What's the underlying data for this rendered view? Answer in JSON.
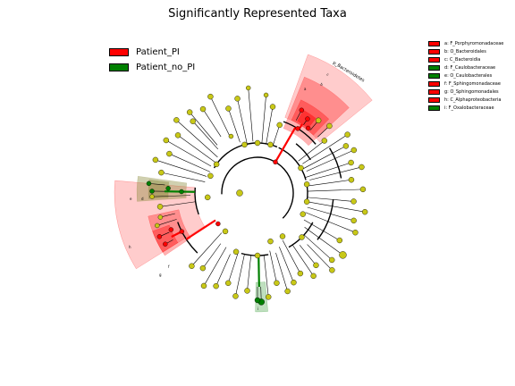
{
  "title": "Significantly Represented Taxa",
  "colors": {
    "patient_pi": "#ff0000",
    "patient_no_pi": "#008000",
    "node": "#c8c817"
  },
  "groups": [
    {
      "label": "Patient_PI",
      "color": "#ff0000"
    },
    {
      "label": "Patient_no_PI",
      "color": "#008000"
    }
  ],
  "taxa_legend": [
    {
      "label": "a: F_Porphyromonadaceae",
      "color": "#ff0000"
    },
    {
      "label": "b: O_Bacteroidales",
      "color": "#ff0000"
    },
    {
      "label": "c: C_Bacteroidia",
      "color": "#ff0000"
    },
    {
      "label": "d: F_Caulobacteraceae",
      "color": "#008000"
    },
    {
      "label": "e: O_Caulobacterales",
      "color": "#008000"
    },
    {
      "label": "f: F_Sphingomonadaceae",
      "color": "#ff0000"
    },
    {
      "label": "g: O_Sphingomonadales",
      "color": "#ff0000"
    },
    {
      "label": "h: C_Alphaproteobacteria",
      "color": "#ff0000"
    },
    {
      "label": "i: F_Oxalobacteraceae",
      "color": "#008000"
    }
  ],
  "clade_labels": {
    "p_bacteroidetes": "p_Bacteroidetes",
    "a": "a",
    "b": "b",
    "c": "c",
    "d": "d",
    "e": "e",
    "f": "f",
    "g": "g",
    "h": "h",
    "i": "i"
  }
}
